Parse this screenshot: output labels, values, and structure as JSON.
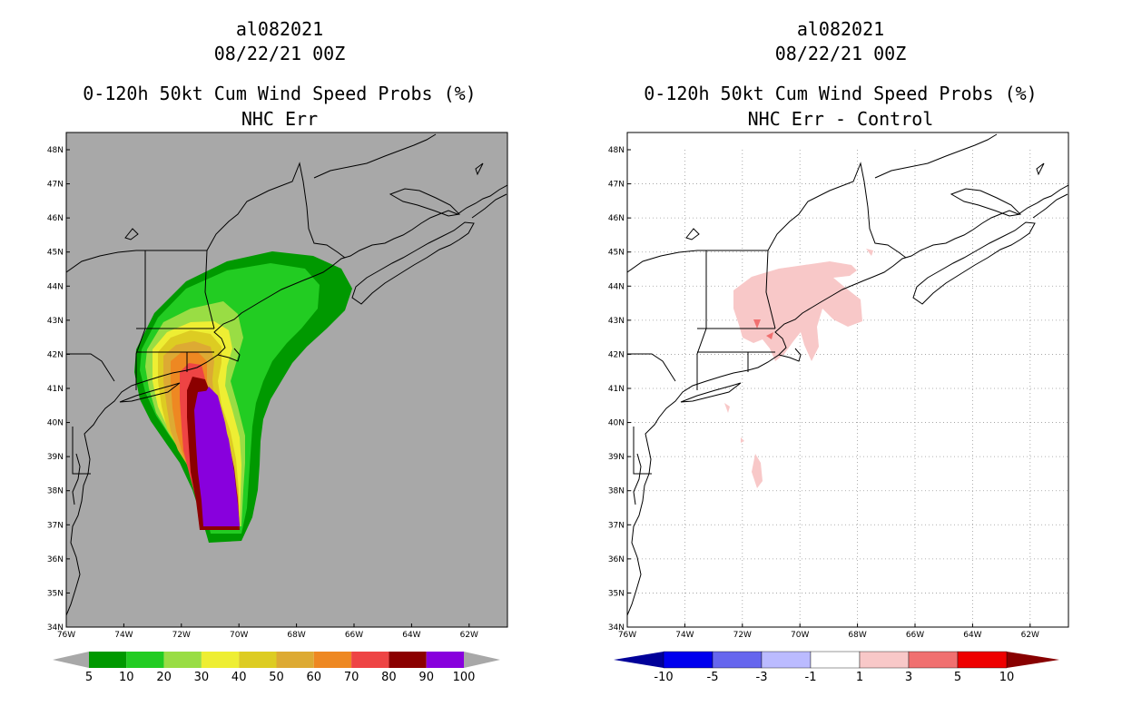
{
  "left_panel": {
    "title_line1": "al082021",
    "title_line2": "08/22/21 00Z",
    "title_line3": "0-120h 50kt Cum Wind Speed Probs (%)",
    "title_line4": "NHC Err",
    "background_color": "#a8a8a8",
    "colorbar": {
      "labels": [
        "5",
        "10",
        "20",
        "30",
        "40",
        "50",
        "60",
        "70",
        "80",
        "90",
        "100"
      ],
      "colors": [
        "#009900",
        "#22cc22",
        "#99dd44",
        "#eeee33",
        "#ddcc22",
        "#ddaa33",
        "#ee8822",
        "#ee4444",
        "#8b0000",
        "#8800dd"
      ],
      "end_color": "#a8a8a8"
    }
  },
  "right_panel": {
    "title_line1": "al082021",
    "title_line2": "08/22/21 00Z",
    "title_line3": "0-120h 50kt Cum Wind Speed Probs (%)",
    "title_line4": "NHC Err - Control",
    "background_color": "#ffffff",
    "colorbar": {
      "labels": [
        "-10",
        "-5",
        "-3",
        "-1",
        "1",
        "3",
        "5",
        "10"
      ],
      "colors": [
        "#0000ee",
        "#6666ee",
        "#bbbbff",
        "#ffffff",
        "#f8c8c8",
        "#f07070",
        "#ee0000"
      ],
      "left_end_color": "#000099",
      "right_end_color": "#880000"
    }
  },
  "axes": {
    "lat_labels": [
      "48N",
      "47N",
      "46N",
      "45N",
      "44N",
      "43N",
      "42N",
      "41N",
      "40N",
      "39N",
      "38N",
      "37N",
      "36N",
      "35N",
      "34N"
    ],
    "lon_labels": [
      "76W",
      "74W",
      "72W",
      "70W",
      "68W",
      "66W",
      "64W",
      "62W"
    ]
  }
}
